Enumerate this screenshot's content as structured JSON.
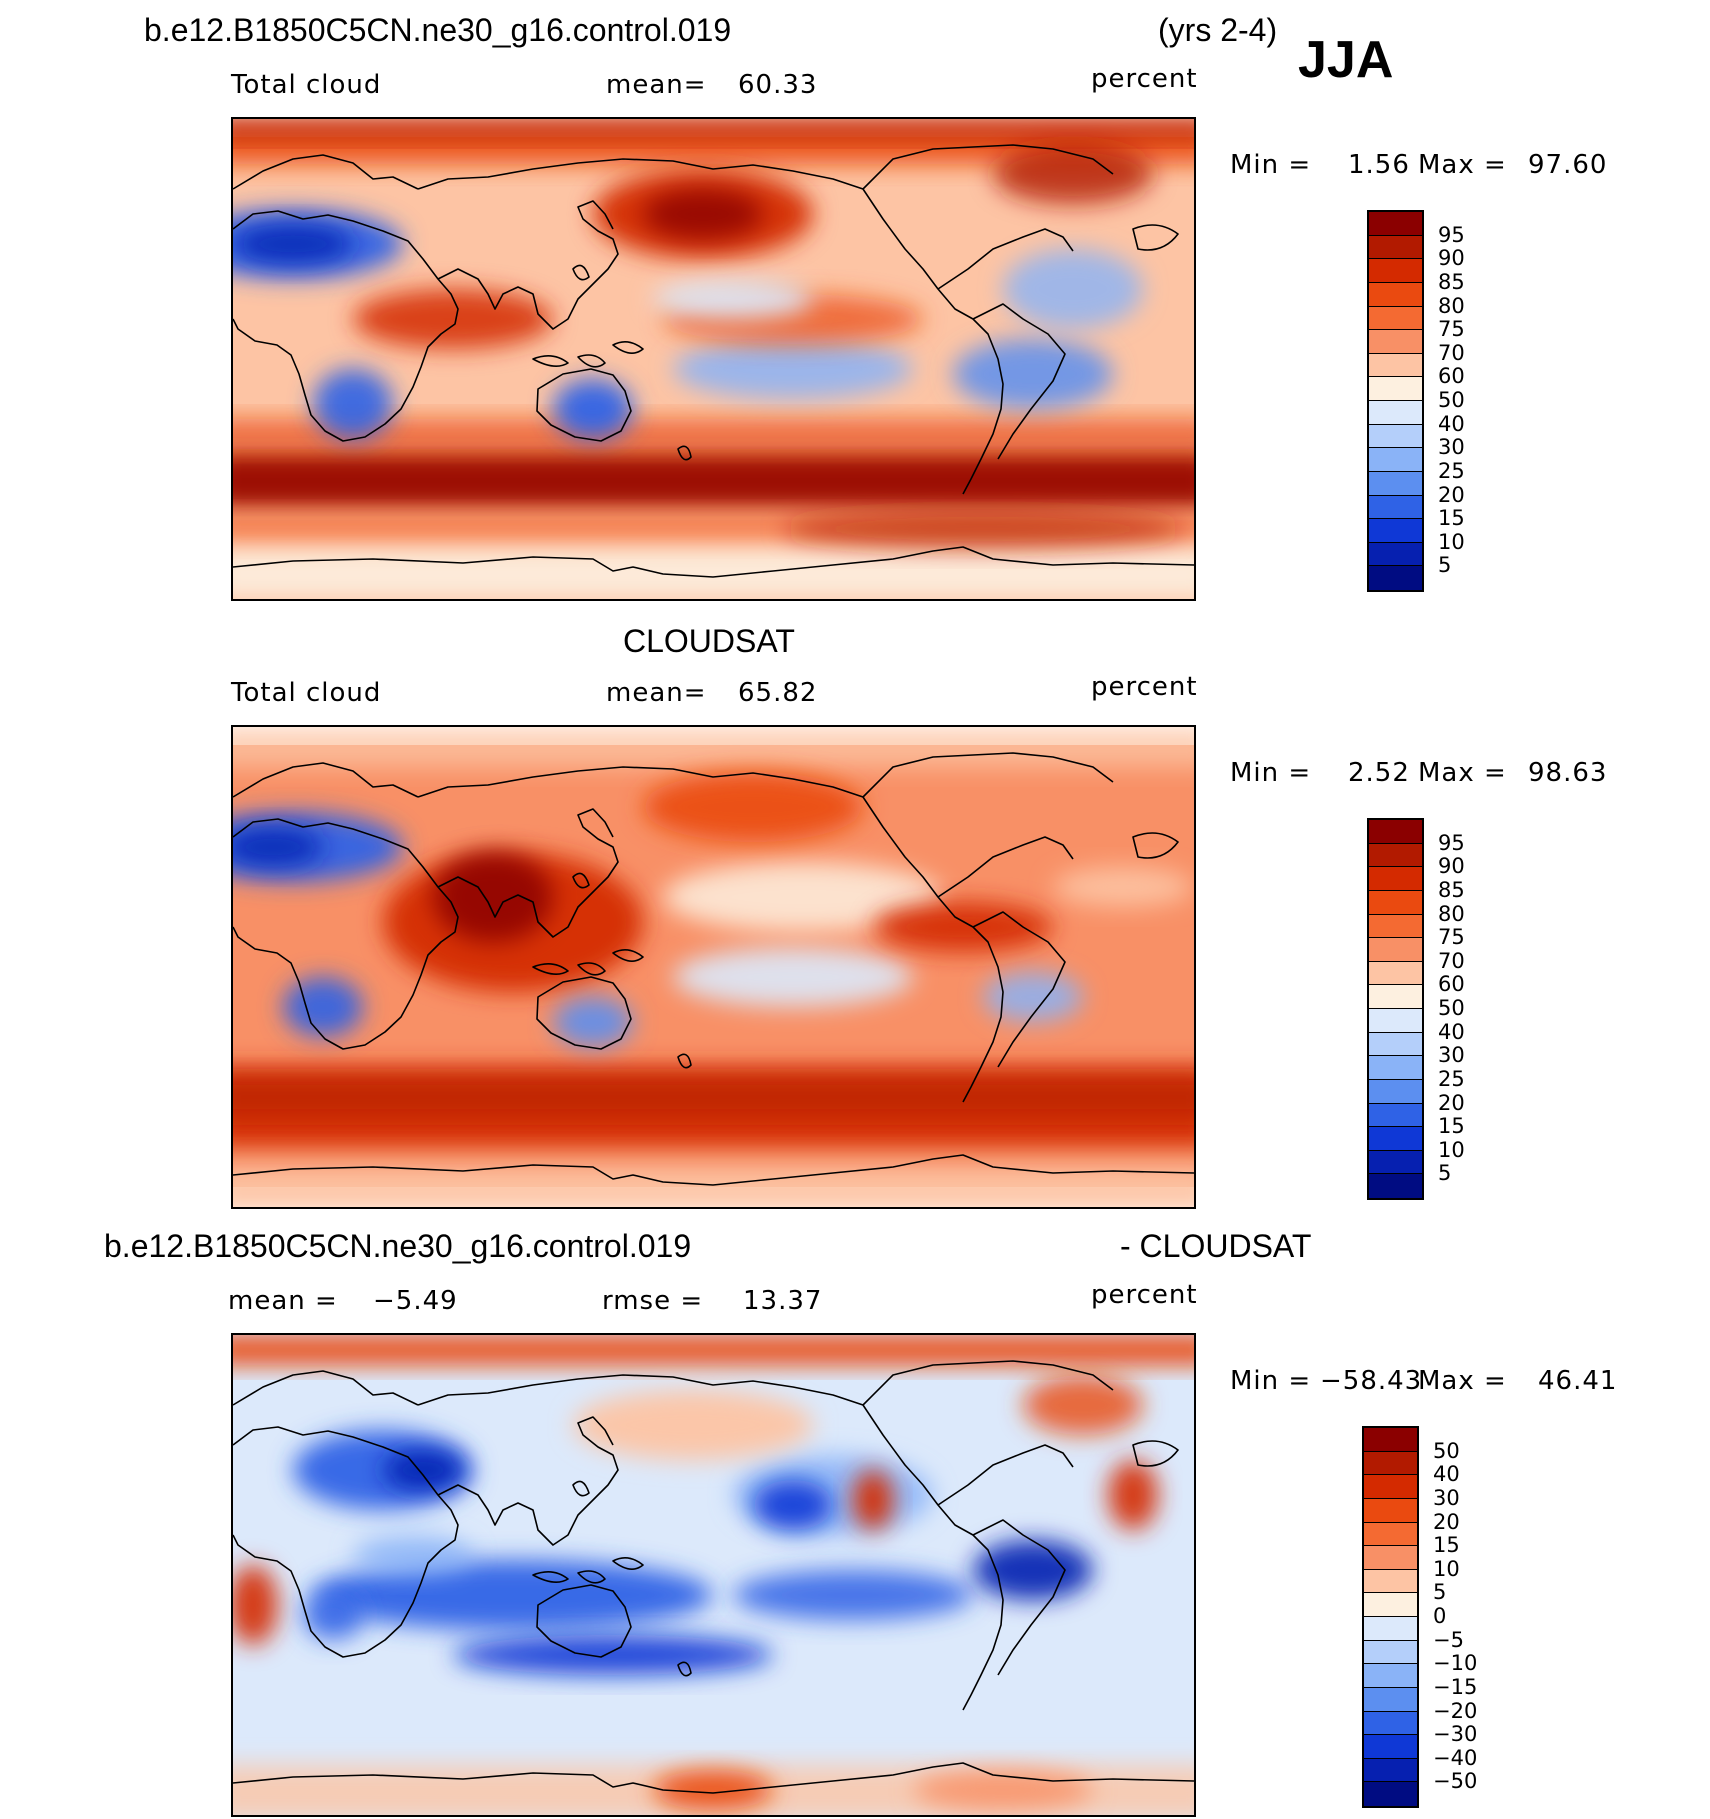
{
  "header": {
    "case_title": "b.e12.B1850C5CN.ne30_g16.control.019",
    "years": "(yrs 2-4)",
    "season": "JJA"
  },
  "chart_data": [
    {
      "type": "heatmap",
      "panel_id": "model",
      "title": "",
      "left_label": "Total cloud",
      "mean_label": "mean=",
      "mean_value": "60.33",
      "units": "percent",
      "min_label": "Min =",
      "min_value": "1.56",
      "max_label": "Max =",
      "max_value": "97.60",
      "colorbar": {
        "levels": [
          "95",
          "90",
          "85",
          "80",
          "75",
          "70",
          "60",
          "50",
          "40",
          "30",
          "25",
          "20",
          "15",
          "10",
          "5"
        ],
        "colors": [
          "#8b0000",
          "#b21a00",
          "#d42a00",
          "#ea4a10",
          "#f46a32",
          "#f89066",
          "#fdc4a4",
          "#fdf0e0",
          "#dce9fb",
          "#b4cffa",
          "#8ab3f7",
          "#5c8ff0",
          "#2f62e6",
          "#0f38d6",
          "#0620b0",
          "#000c82"
        ]
      }
    },
    {
      "type": "heatmap",
      "panel_id": "obs",
      "title": "CLOUDSAT",
      "left_label": "Total cloud",
      "mean_label": "mean=",
      "mean_value": "65.82",
      "units": "percent",
      "min_label": "Min =",
      "min_value": "2.52",
      "max_label": "Max =",
      "max_value": "98.63",
      "colorbar": {
        "levels": [
          "95",
          "90",
          "85",
          "80",
          "75",
          "70",
          "60",
          "50",
          "40",
          "30",
          "25",
          "20",
          "15",
          "10",
          "5"
        ],
        "colors": [
          "#8b0000",
          "#b21a00",
          "#d42a00",
          "#ea4a10",
          "#f46a32",
          "#f89066",
          "#fdc4a4",
          "#fdf0e0",
          "#dce9fb",
          "#b4cffa",
          "#8ab3f7",
          "#5c8ff0",
          "#2f62e6",
          "#0f38d6",
          "#0620b0",
          "#000c82"
        ]
      }
    },
    {
      "type": "heatmap",
      "panel_id": "diff",
      "title": "b.e12.B1850C5CN.ne30_g16.control.019",
      "title_right": "- CLOUDSAT",
      "left_label": "mean =",
      "left_value": "−5.49",
      "mean_label": "rmse =",
      "mean_value": "13.37",
      "units": "percent",
      "min_label": "Min =",
      "min_value": "−58.43",
      "max_label": "Max =",
      "max_value": "46.41",
      "colorbar": {
        "levels": [
          "50",
          "40",
          "30",
          "20",
          "15",
          "10",
          "5",
          "0",
          "−5",
          "−10",
          "−15",
          "−20",
          "−30",
          "−40",
          "−50"
        ],
        "colors": [
          "#8b0000",
          "#b21a00",
          "#d42a00",
          "#ea4a10",
          "#f46a32",
          "#f89066",
          "#fdc4a4",
          "#fdf0e0",
          "#dce9fb",
          "#b4cffa",
          "#8ab3f7",
          "#5c8ff0",
          "#2f62e6",
          "#0f38d6",
          "#0620b0",
          "#000c82"
        ]
      }
    }
  ]
}
